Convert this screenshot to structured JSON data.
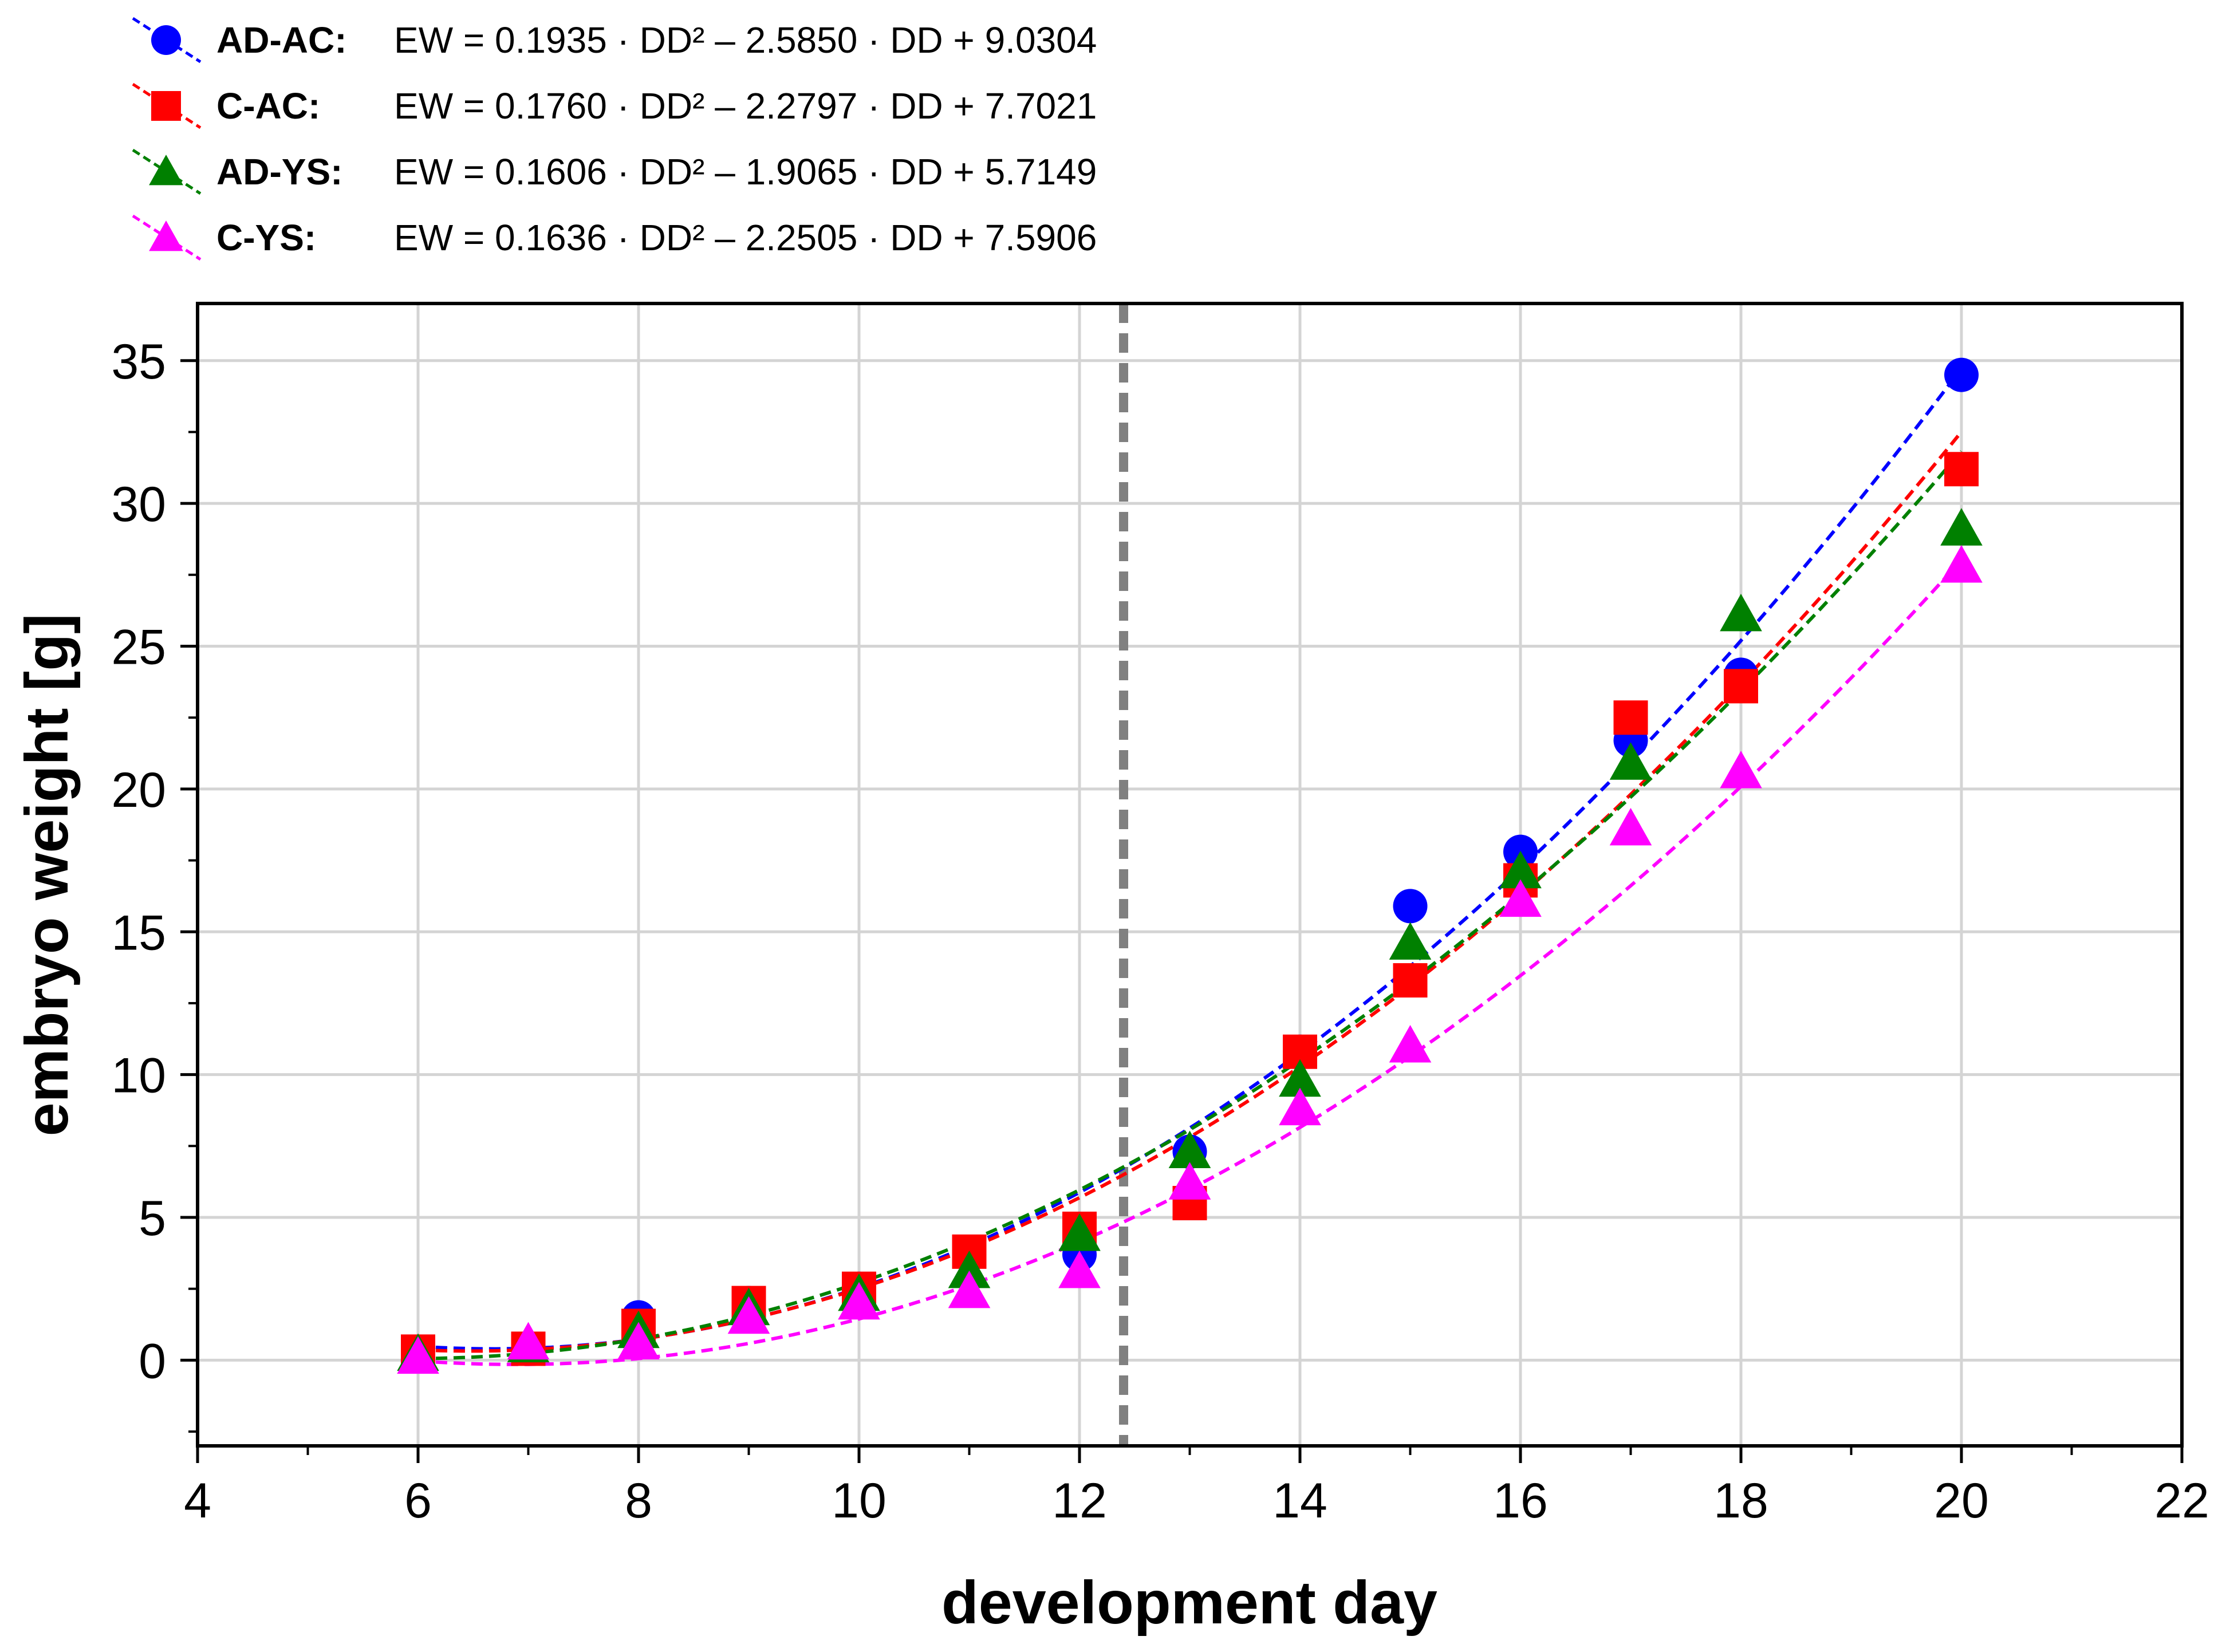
{
  "chart_data": {
    "type": "scatter",
    "title": "",
    "xlabel": "development day",
    "ylabel": "embryo weight [g]",
    "xlim": [
      4,
      22
    ],
    "ylim": [
      -3,
      37
    ],
    "xticks": [
      4,
      6,
      8,
      10,
      12,
      14,
      16,
      18,
      20,
      22
    ],
    "yticks": [
      0,
      5,
      10,
      15,
      20,
      25,
      30,
      35
    ],
    "grid": true,
    "legend_position": "top-left, above plot",
    "reference_line": {
      "x": 12.4,
      "style": "dashed",
      "color": "#808080"
    },
    "series": [
      {
        "name": "AD-AC:",
        "equation": "EW = 0.1935 · DD² – 2.5850 · DD + 9.0304",
        "marker": "circle",
        "color": "#0000ff",
        "fit": {
          "a": 0.1935,
          "b": -2.585,
          "c": 9.0304
        },
        "x": [
          6,
          7,
          8,
          9,
          10,
          11,
          12,
          13,
          14,
          15,
          16,
          17,
          18,
          20
        ],
        "y": [
          0.3,
          0.4,
          1.5,
          2.0,
          2.5,
          3.7,
          3.7,
          7.3,
          10.8,
          15.9,
          17.8,
          21.7,
          24.0,
          34.5
        ]
      },
      {
        "name": "C-AC:",
        "equation": "EW = 0.1760 · DD² – 2.2797 · DD + 7.7021",
        "marker": "square",
        "color": "#ff0000",
        "fit": {
          "a": 0.176,
          "b": -2.2797,
          "c": 7.7021
        },
        "x": [
          6,
          7,
          8,
          9,
          10,
          11,
          12,
          13,
          14,
          15,
          16,
          17,
          18,
          20
        ],
        "y": [
          0.3,
          0.4,
          1.2,
          2.0,
          2.5,
          3.8,
          4.6,
          5.5,
          10.8,
          13.3,
          16.8,
          22.5,
          23.6,
          31.2
        ]
      },
      {
        "name": "AD-YS:",
        "equation": "EW = 0.1606 · DD² – 1.9065 · DD + 5.7149",
        "marker": "triangle",
        "color": "#008000",
        "fit": {
          "a": 0.1606,
          "b": -1.9065,
          "c": 5.7149
        },
        "x": [
          6,
          7,
          8,
          9,
          10,
          11,
          12,
          13,
          14,
          15,
          16,
          17,
          18,
          20
        ],
        "y": [
          0.2,
          0.5,
          1.0,
          1.8,
          2.3,
          3.1,
          4.4,
          7.3,
          9.8,
          14.6,
          17.1,
          20.9,
          26.1,
          29.1
        ]
      },
      {
        "name": "C-YS:",
        "equation": "EW = 0.1636 · DD² – 2.2505 · DD + 7.5906",
        "marker": "triangle",
        "color": "#ff00ff",
        "fit": {
          "a": 0.1636,
          "b": -2.2505,
          "c": 7.5906
        },
        "x": [
          6,
          7,
          8,
          9,
          10,
          11,
          12,
          13,
          14,
          15,
          16,
          17,
          18,
          20
        ],
        "y": [
          0.1,
          0.6,
          0.6,
          1.5,
          2.0,
          2.4,
          3.1,
          6.2,
          8.8,
          11.0,
          16.1,
          18.6,
          20.6,
          27.8
        ]
      }
    ]
  }
}
